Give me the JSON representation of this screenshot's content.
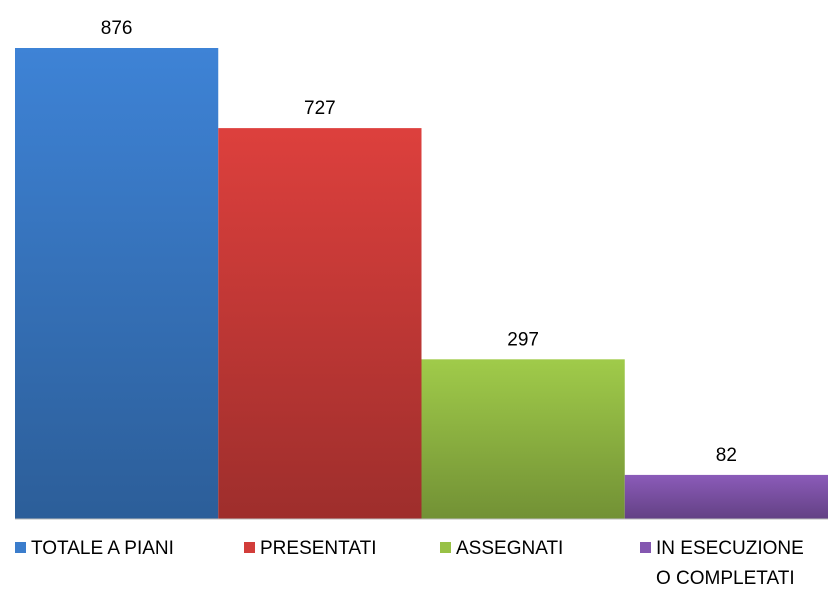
{
  "chart_data": {
    "type": "bar",
    "series": [
      {
        "name": "TOTALE A PIANI",
        "color": "#3b7dcc",
        "values": [
          876
        ]
      },
      {
        "name": "PRESENTATI",
        "color": "#d23d3a",
        "values": [
          727
        ]
      },
      {
        "name": "ASSEGNATI",
        "color": "#98c146",
        "values": [
          297
        ]
      },
      {
        "name": "IN ESECUZIONE O COMPLETATI",
        "color": "#8457b0",
        "values": [
          82
        ]
      }
    ]
  }
}
